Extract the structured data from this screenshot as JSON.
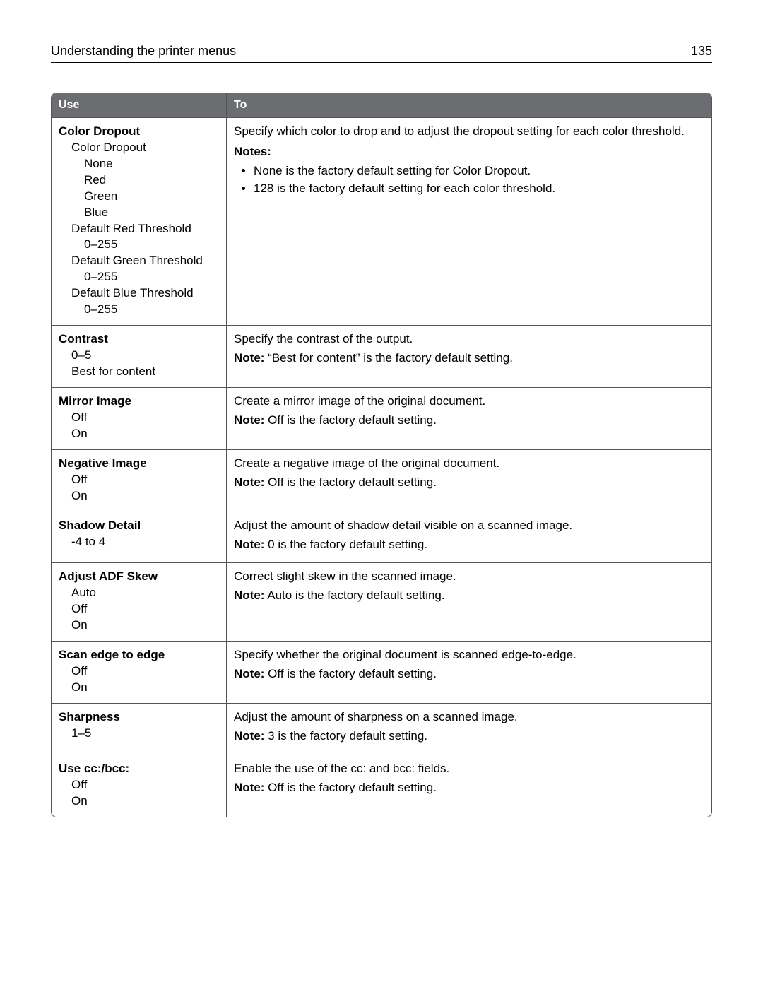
{
  "page": {
    "running_title": "Understanding the printer menus",
    "page_number": "135"
  },
  "table": {
    "headers": {
      "use": "Use",
      "to": "To"
    },
    "note_label": "Note:",
    "notes_label": "Notes:",
    "rows": [
      {
        "title": "Color Dropout",
        "options": [
          {
            "text": "Color Dropout",
            "level": 1
          },
          {
            "text": "None",
            "level": 2
          },
          {
            "text": "Red",
            "level": 2
          },
          {
            "text": "Green",
            "level": 2
          },
          {
            "text": "Blue",
            "level": 2
          },
          {
            "text": "Default Red Threshold",
            "level": 1
          },
          {
            "text": "0–255",
            "level": 2
          },
          {
            "text": "Default Green Threshold",
            "level": 1
          },
          {
            "text": "0–255",
            "level": 2
          },
          {
            "text": "Default Blue Threshold",
            "level": 1
          },
          {
            "text": "0–255",
            "level": 2
          }
        ],
        "desc": "Specify which color to drop and to adjust the dropout setting for each color threshold.",
        "notes_list": [
          "None is the factory default setting for Color Dropout.",
          "128 is the factory default setting for each color threshold."
        ]
      },
      {
        "title": "Contrast",
        "options": [
          {
            "text": "0–5",
            "level": 1
          },
          {
            "text": "Best for content",
            "level": 1
          }
        ],
        "desc": "Specify the contrast of the output.",
        "note": "“Best for content” is the factory default setting."
      },
      {
        "title": "Mirror Image",
        "options": [
          {
            "text": "Off",
            "level": 1
          },
          {
            "text": "On",
            "level": 1
          }
        ],
        "desc": "Create a mirror image of the original document.",
        "note": "Off is the factory default setting."
      },
      {
        "title": "Negative Image",
        "options": [
          {
            "text": "Off",
            "level": 1
          },
          {
            "text": "On",
            "level": 1
          }
        ],
        "desc": "Create a negative image of the original document.",
        "note": "Off is the factory default setting."
      },
      {
        "title": "Shadow Detail",
        "options": [
          {
            "text": "‑4 to 4",
            "level": 1
          }
        ],
        "desc": "Adjust the amount of shadow detail visible on a scanned image.",
        "note": "0 is the factory default setting."
      },
      {
        "title": "Adjust ADF Skew",
        "options": [
          {
            "text": "Auto",
            "level": 1
          },
          {
            "text": "Off",
            "level": 1
          },
          {
            "text": "On",
            "level": 1
          }
        ],
        "desc": "Correct slight skew in the scanned image.",
        "note": "Auto is the factory default setting."
      },
      {
        "title": "Scan edge to edge",
        "options": [
          {
            "text": "Off",
            "level": 1
          },
          {
            "text": "On",
            "level": 1
          }
        ],
        "desc": "Specify whether the original document is scanned edge‑to‑edge.",
        "note": "Off is the factory default setting."
      },
      {
        "title": "Sharpness",
        "options": [
          {
            "text": "1–5",
            "level": 1
          }
        ],
        "desc": "Adjust the amount of sharpness on a scanned image.",
        "note": "3 is the factory default setting."
      },
      {
        "title": "Use cc:/bcc:",
        "options": [
          {
            "text": "Off",
            "level": 1
          },
          {
            "text": "On",
            "level": 1
          }
        ],
        "desc": "Enable the use of the cc: and bcc: fields.",
        "note": "Off is the factory default setting."
      }
    ]
  }
}
